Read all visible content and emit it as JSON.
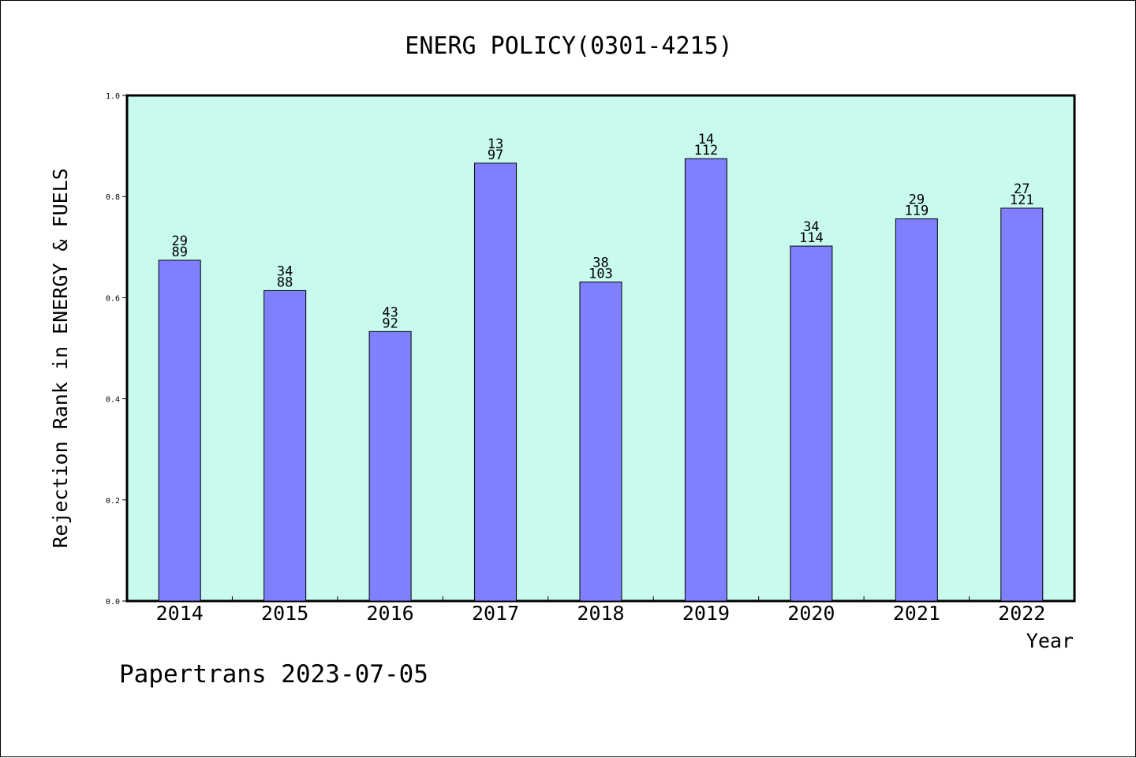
{
  "chart_data": {
    "type": "bar",
    "title": "ENERG POLICY(0301-4215)",
    "xlabel": "Year",
    "ylabel": "Rejection Rank in ENERGY & FUELS",
    "ylim": [
      0,
      1.0
    ],
    "yticks": [
      "0.0",
      "0.2",
      "0.4",
      "0.6",
      "0.8",
      "1.0"
    ],
    "categories": [
      "2014",
      "2015",
      "2016",
      "2017",
      "2018",
      "2019",
      "2020",
      "2021",
      "2022"
    ],
    "values": [
      0.674,
      0.614,
      0.533,
      0.866,
      0.631,
      0.875,
      0.702,
      0.756,
      0.777
    ],
    "labels_top": [
      "29",
      "34",
      "43",
      "13",
      "38",
      "14",
      "34",
      "29",
      "27"
    ],
    "labels_bottom": [
      "89",
      "88",
      "92",
      "97",
      "103",
      "112",
      "114",
      "119",
      "121"
    ],
    "grid": false,
    "colors": {
      "plot_background": "#c8faee",
      "bar_fill": "#8080ff",
      "bar_stroke": "#000000"
    }
  },
  "footer": "Papertrans 2023-07-05"
}
